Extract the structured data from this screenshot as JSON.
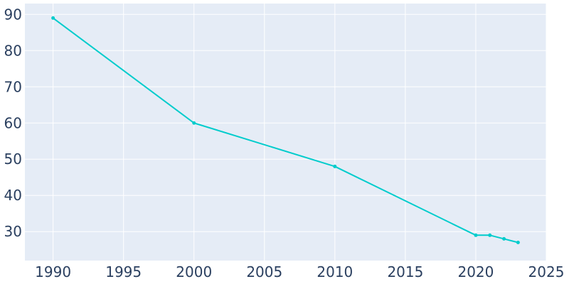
{
  "chart_data": {
    "type": "line",
    "title": "",
    "xlabel": "",
    "ylabel": "",
    "xlim": [
      1988,
      2025
    ],
    "ylim": [
      22,
      93
    ],
    "x_ticks": [
      1990,
      1995,
      2000,
      2005,
      2010,
      2015,
      2020,
      2025
    ],
    "y_ticks": [
      30,
      40,
      50,
      60,
      70,
      80,
      90
    ],
    "grid": true,
    "legend": "none",
    "series": [
      {
        "color": "#00cccc",
        "x": [
          1990,
          2000,
          2010,
          2020,
          2021,
          2022,
          2023
        ],
        "y": [
          89,
          60,
          48,
          29,
          29,
          28,
          27
        ]
      }
    ]
  },
  "colors": {
    "plot_background": "#e5ecf6",
    "grid": "#ffffff",
    "tick_text": "#2a3f5f"
  }
}
